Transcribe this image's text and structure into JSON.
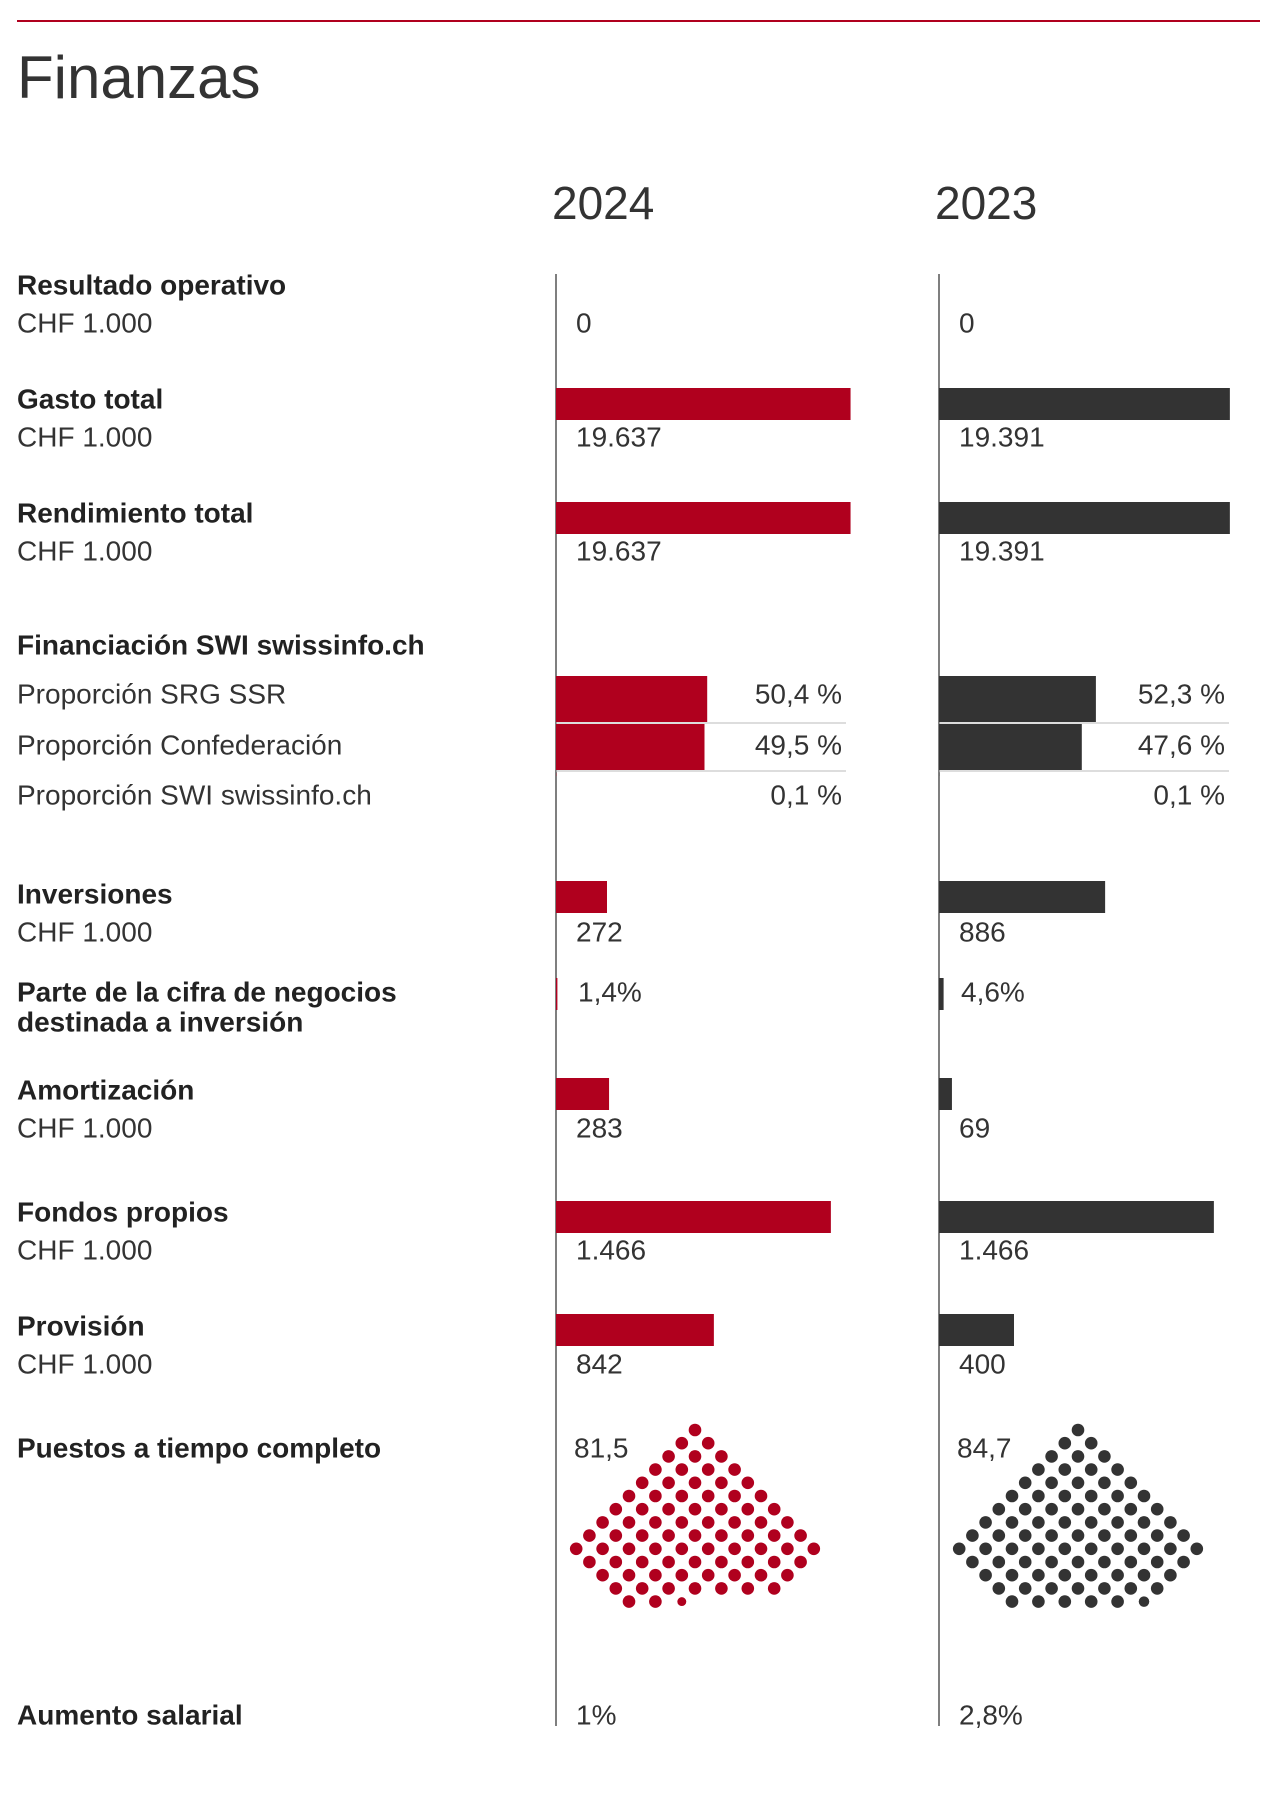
{
  "title": "Finanzas",
  "years": [
    "2024",
    "2023"
  ],
  "colors": [
    "#b0001e",
    "#333333"
  ],
  "chart_data": [
    {
      "type": "bar",
      "title": "Resultado operativo",
      "unit": "CHF 1.000",
      "values": [
        0,
        0
      ],
      "value_labels": [
        "0",
        "0"
      ],
      "xlim": [
        0,
        20000
      ]
    },
    {
      "type": "bar",
      "title": "Gasto total",
      "unit": "CHF 1.000",
      "values": [
        19637,
        19391
      ],
      "value_labels": [
        "19.637",
        "19.391"
      ],
      "xlim": [
        0,
        20000
      ]
    },
    {
      "type": "bar",
      "title": "Rendimiento total",
      "unit": "CHF 1.000",
      "values": [
        19637,
        19391
      ],
      "value_labels": [
        "19.637",
        "19.391"
      ],
      "xlim": [
        0,
        20000
      ]
    },
    {
      "type": "share",
      "title": "Financiación SWI swissinfo.ch",
      "categories": [
        "Proporción SRG SSR",
        "Proporción Confederación",
        "Proporción SWI swissinfo.ch"
      ],
      "values": [
        [
          50.4,
          52.3
        ],
        [
          49.5,
          47.6
        ],
        [
          0.1,
          0.1
        ]
      ],
      "value_labels": [
        [
          "50,4 %",
          "52,3 %"
        ],
        [
          "49,5 %",
          "47,6 %"
        ],
        [
          "0,1 %",
          "0,1 %"
        ]
      ],
      "xlim": [
        0,
        100
      ]
    },
    {
      "type": "bar",
      "title": "Inversiones",
      "unit": "CHF 1.000",
      "values": [
        272,
        886
      ],
      "value_labels": [
        "272",
        "886"
      ],
      "xlim": [
        0,
        1600
      ]
    },
    {
      "type": "bar",
      "title": [
        "Parte de la cifra de negocios",
        "destinada a inversión"
      ],
      "values": [
        1.4,
        4.6
      ],
      "value_labels": [
        "1,4%",
        "4,6%"
      ],
      "xlim": [
        0,
        300
      ]
    },
    {
      "type": "bar",
      "title": "Amortización",
      "unit": "CHF 1.000",
      "values": [
        283,
        69
      ],
      "value_labels": [
        "283",
        "69"
      ],
      "xlim": [
        0,
        1600
      ]
    },
    {
      "type": "bar",
      "title": "Fondos propios",
      "unit": "CHF 1.000",
      "values": [
        1466,
        1466
      ],
      "value_labels": [
        "1.466",
        "1.466"
      ],
      "xlim": [
        0,
        1600
      ]
    },
    {
      "type": "bar",
      "title": "Provisión",
      "unit": "CHF 1.000",
      "values": [
        842,
        400
      ],
      "value_labels": [
        "842",
        "400"
      ],
      "xlim": [
        0,
        1600
      ]
    },
    {
      "type": "dots",
      "title": "Puestos a tiempo completo",
      "values": [
        81.5,
        84.7
      ],
      "value_labels": [
        "81,5",
        "84,7"
      ]
    },
    {
      "type": "text",
      "title": "Aumento salarial",
      "values": [
        1,
        2.8
      ],
      "value_labels": [
        "1%",
        "2,8%"
      ]
    }
  ]
}
